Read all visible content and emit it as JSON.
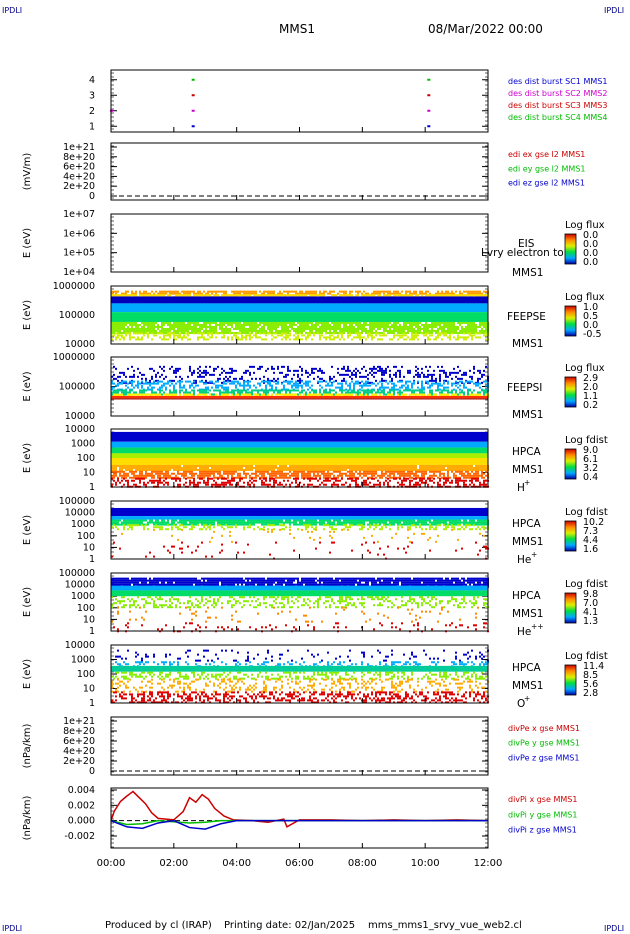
{
  "header": {
    "left_corner_top": "IPDLI",
    "right_corner_top": "IPDLI",
    "left_corner_bottom": "IPDLI",
    "right_corner_bottom": "IPDLI",
    "title": "MMS1",
    "date": "08/Mar/2022 00:00"
  },
  "footer": {
    "produced": "Produced by cl (IRAP)",
    "printing": "Printing date: 02/Jan/2025",
    "file": "mms_mms1_srvy_vue_web2.cl"
  },
  "colors": {
    "blue": "#0000cc",
    "magenta": "#cc00cc",
    "red": "#cc0000",
    "green": "#00bb00"
  },
  "chart_data": [
    {
      "id": "p1",
      "type": "scatter",
      "ylabel": "",
      "yticks": [
        "4",
        "3",
        "2",
        "1"
      ],
      "ylim": [
        0.5,
        4.5
      ],
      "legend": [
        "des dist burst SC1 MMS1",
        "des dist burst SC2 MMS2",
        "des dist burst SC3 MMS3",
        "des dist burst SC4 MMS4"
      ],
      "legend_colors": [
        "#0000cc",
        "#cc00cc",
        "#cc0000",
        "#00bb00"
      ],
      "points": [
        {
          "x": 2.6,
          "y": 4,
          "c": 3
        },
        {
          "x": 10.1,
          "y": 4,
          "c": 3
        },
        {
          "x": 2.6,
          "y": 3,
          "c": 2
        },
        {
          "x": 10.1,
          "y": 3,
          "c": 2
        },
        {
          "x": 0.0,
          "y": 2,
          "c": 1
        },
        {
          "x": 2.6,
          "y": 2,
          "c": 1
        },
        {
          "x": 10.1,
          "y": 2,
          "c": 1
        },
        {
          "x": 2.6,
          "y": 1,
          "c": 0
        },
        {
          "x": 10.1,
          "y": 1,
          "c": 0
        }
      ]
    },
    {
      "id": "p2",
      "type": "line",
      "ylabel": "(mV/m)",
      "yticks": [
        "1e+21",
        "8e+20",
        "6e+20",
        "4e+20",
        "2e+20",
        "0"
      ],
      "ylim": [
        0,
        1e+21
      ],
      "legend": [
        "edi ex gse l2 MMS1",
        "edi ey gse l2 MMS1",
        "edi ez gse l2 MMS1"
      ],
      "legend_colors": [
        "#cc0000",
        "#00bb00",
        "#0000cc"
      ],
      "zero_line": true
    },
    {
      "id": "p3",
      "type": "heatmap",
      "ylabel": "E (eV)",
      "yticks": [
        "1e+07",
        "1e+06",
        "1e+05",
        "1e+04"
      ],
      "labels": [
        "EIS",
        "MMS1"
      ],
      "overlap_text": "Lvry electron to",
      "cbar_title": "Log flux",
      "cbar_ticks": [
        "0.0",
        "0.0",
        "0.0",
        "0.0"
      ]
    },
    {
      "id": "p4",
      "type": "heatmap",
      "ylabel": "E (eV)",
      "yticks": [
        "1000000",
        "100000",
        "10000"
      ],
      "labels": [
        "FEEPSE",
        "MMS1"
      ],
      "cbar_title": "Log flux",
      "cbar_ticks": [
        "1.0",
        "0.5",
        "0.0",
        "-0.5"
      ]
    },
    {
      "id": "p5",
      "type": "heatmap",
      "ylabel": "E (eV)",
      "yticks": [
        "1000000",
        "100000",
        "10000"
      ],
      "labels": [
        "FEEPSI",
        "MMS1"
      ],
      "cbar_title": "Log flux",
      "cbar_ticks": [
        "2.9",
        "2.0",
        "1.1",
        "0.2"
      ]
    },
    {
      "id": "p6",
      "type": "heatmap",
      "ylabel": "E (eV)",
      "yticks": [
        "10000",
        "1000",
        "100",
        "10",
        "1"
      ],
      "labels": [
        "HPCA",
        "MMS1"
      ],
      "species": "H",
      "species_sup": "+",
      "cbar_title": "Log fdist",
      "cbar_ticks": [
        "9.0",
        "6.1",
        "3.2",
        "0.4"
      ]
    },
    {
      "id": "p7",
      "type": "heatmap",
      "ylabel": "E (eV)",
      "yticks": [
        "100000",
        "10000",
        "1000",
        "100",
        "10",
        "1"
      ],
      "labels": [
        "HPCA",
        "MMS1"
      ],
      "species": "He",
      "species_sup": "+",
      "cbar_title": "Log fdist",
      "cbar_ticks": [
        "10.2",
        "7.3",
        "4.4",
        "1.6"
      ]
    },
    {
      "id": "p8",
      "type": "heatmap",
      "ylabel": "E (eV)",
      "yticks": [
        "100000",
        "10000",
        "1000",
        "100",
        "10",
        "1"
      ],
      "labels": [
        "HPCA",
        "MMS1"
      ],
      "species": "He",
      "species_sup": "++",
      "cbar_title": "Log fdist",
      "cbar_ticks": [
        "9.8",
        "7.0",
        "4.1",
        "1.3"
      ]
    },
    {
      "id": "p9",
      "type": "heatmap",
      "ylabel": "E (eV)",
      "yticks": [
        "10000",
        "1000",
        "100",
        "10",
        "1"
      ],
      "labels": [
        "HPCA",
        "MMS1"
      ],
      "species": "O",
      "species_sup": "+",
      "cbar_title": "Log fdist",
      "cbar_ticks": [
        "11.4",
        "8.5",
        "5.6",
        "2.8"
      ]
    },
    {
      "id": "p10",
      "type": "line",
      "ylabel": "(nPa/km)",
      "yticks": [
        "1e+21",
        "8e+20",
        "6e+20",
        "4e+20",
        "2e+20",
        "0"
      ],
      "ylim": [
        0,
        1e+21
      ],
      "legend": [
        "divPe x gse MMS1",
        "divPe y gse MMS1",
        "divPe z gse MMS1"
      ],
      "legend_colors": [
        "#cc0000",
        "#00bb00",
        "#0000cc"
      ],
      "zero_line": true
    },
    {
      "id": "p11",
      "type": "line",
      "ylabel": "(nPa/km)",
      "yticks": [
        "0.004",
        "0.002",
        "0.000",
        "-0.002"
      ],
      "ylim": [
        -0.004,
        0.004
      ],
      "legend": [
        "divPi x gse MMS1",
        "divPi y gse MMS1",
        "divPi z gse MMS1"
      ],
      "legend_colors": [
        "#cc0000",
        "#00bb00",
        "#0000cc"
      ],
      "zero_line": true,
      "series": [
        {
          "name": "divPi x gse MMS1",
          "color": "#cc0000",
          "x": [
            0.0,
            0.1,
            0.3,
            0.5,
            0.7,
            0.9,
            1.1,
            1.3,
            1.5,
            2.0,
            2.3,
            2.5,
            2.7,
            2.9,
            3.1,
            3.3,
            3.6,
            3.9,
            4.5,
            5.0,
            5.5,
            5.6,
            6.0,
            7.0,
            8.0,
            9.0,
            10.0,
            11.0,
            12.0
          ],
          "y": [
            0.0,
            0.0012,
            0.0025,
            0.0032,
            0.0038,
            0.003,
            0.0022,
            0.001,
            0.0003,
            0.0001,
            0.0012,
            0.003,
            0.0024,
            0.0034,
            0.0028,
            0.0016,
            0.0006,
            0.0001,
            0.0,
            -0.0002,
            0.0002,
            -0.0008,
            0.0001,
            0.0001,
            0.0,
            0.0001,
            0.0,
            0.0001,
            0.0
          ]
        },
        {
          "name": "divPi y gse MMS1",
          "color": "#00bb00",
          "x": [
            0.0,
            0.5,
            1.0,
            1.5,
            2.5,
            3.0,
            3.5,
            5.5,
            6.0,
            12.0
          ],
          "y": [
            0.0,
            -0.0005,
            -0.0004,
            0.0,
            -0.0003,
            -0.0002,
            0.0,
            0.0,
            0.0,
            0.0
          ]
        },
        {
          "name": "divPi z gse MMS1",
          "color": "#0000cc",
          "x": [
            0.0,
            0.5,
            1.0,
            1.5,
            2.0,
            2.5,
            3.0,
            3.5,
            4.0,
            6.0,
            12.0
          ],
          "y": [
            0.0,
            -0.0008,
            -0.001,
            -0.0003,
            0.0,
            -0.0009,
            -0.0011,
            -0.0004,
            0.0,
            0.0,
            0.0
          ]
        }
      ]
    }
  ],
  "xaxis": {
    "ticks": [
      "00:00",
      "02:00",
      "04:00",
      "06:00",
      "08:00",
      "10:00",
      "12:00"
    ],
    "xlim": [
      0,
      12
    ]
  }
}
